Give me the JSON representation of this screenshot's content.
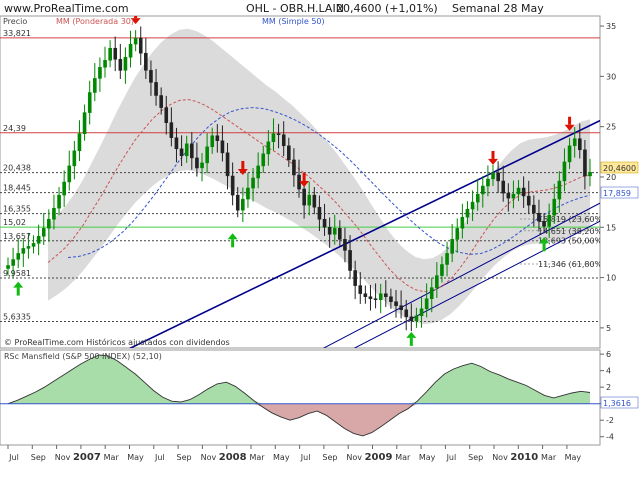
{
  "header": {
    "site": "www.ProRealTime.com",
    "instrument": "OHL - OBR.H.LAIN",
    "quote": "20,4600 (+1,01%)",
    "period": "Semanal  28 May"
  },
  "main_panel": {
    "price_label": "Precio",
    "ma_weighted_label": "MM (Ponderada 30)",
    "ma_simple_label": "MM (Simple 50)",
    "footnote": "© ProRealTime.com Históricos ajustados con dividendos",
    "current_price_tag": "20,4600",
    "secondary_price_tag": "17,859",
    "right_axis_ticks": [
      "35",
      "30",
      "25",
      "20",
      "15",
      "10",
      "5"
    ],
    "left_levels": [
      "33,821",
      "24,39",
      "20,438",
      "18,445",
      "16,355",
      "15,02",
      "13,657",
      "9,9581",
      "5,6335"
    ],
    "fib_labels": [
      "15,819 (23,60%)",
      "14,651 (38,20%)",
      "13,693 (50,00%)",
      "11,346 (61,80%)"
    ]
  },
  "indicator_panel": {
    "label": "RSc Mansfield (S&P 500 INDEX) (52,10)",
    "value_tag": "1,3616",
    "axis_ticks": [
      "6",
      "4",
      "2",
      "0",
      "-2",
      "-4"
    ]
  },
  "x_axis": {
    "labels": [
      "Jul",
      "Sep",
      "Nov",
      "2007",
      "Mar",
      "May",
      "Jul",
      "Sep",
      "Nov",
      "2008",
      "Mar",
      "May",
      "Jul",
      "Sep",
      "Nov",
      "2009",
      "Mar",
      "May",
      "Jul",
      "Sep",
      "Nov",
      "2010",
      "Mar",
      "May"
    ]
  },
  "colors": {
    "candle_up": "#008800",
    "candle_down": "#222222",
    "trendline": "#00008b",
    "ma_weighted": "#cc5555",
    "ma_simple": "#3355cc",
    "envelope": "#c8c8c8",
    "arrow_up": "#11bb11",
    "arrow_down": "#dd1100",
    "indicator_positive": "#a8dca8",
    "indicator_negative": "#d8a8a8"
  },
  "chart_data": {
    "type": "candlestick",
    "title": "OHL - OBR.H.LAIN",
    "ylim": [
      3,
      36
    ],
    "weekly_closes": [
      11.2,
      11.8,
      12.4,
      12.9,
      13.1,
      13.4,
      14.1,
      14.9,
      15.8,
      16.9,
      18.2,
      19.5,
      21.1,
      22.6,
      24.3,
      26.4,
      28.4,
      29.8,
      30.9,
      31.6,
      32.8,
      31.7,
      30.6,
      31.9,
      33.2,
      33.8,
      32.3,
      30.6,
      29.4,
      28.1,
      26.9,
      25.4,
      23.9,
      22.8,
      22.1,
      23.3,
      21.9,
      20.9,
      21.4,
      23.0,
      24.1,
      23.6,
      22.4,
      20.1,
      18.2,
      16.7,
      17.8,
      18.9,
      19.9,
      21.1,
      22.3,
      23.5,
      24.3,
      24.2,
      23.1,
      21.7,
      20.2,
      18.8,
      17.2,
      18.2,
      17.0,
      15.8,
      15.0,
      14.3,
      14.9,
      13.8,
      12.7,
      10.7,
      9.2,
      8.4,
      8.1,
      7.9,
      7.8,
      8.4,
      8.1,
      7.6,
      7.2,
      6.8,
      6.1,
      5.7,
      6.2,
      6.9,
      7.9,
      9.0,
      10.2,
      11.3,
      12.4,
      13.8,
      14.9,
      16.0,
      16.8,
      17.5,
      18.3,
      19.1,
      19.8,
      20.4,
      19.6,
      18.4,
      17.9,
      18.3,
      18.9,
      18.1,
      17.2,
      16.4,
      15.6,
      15.1,
      16.2,
      17.8,
      19.6,
      21.5,
      23.1,
      23.8,
      22.7,
      20.1,
      20.46
    ],
    "ma_weighted_30": [
      11.5,
      12.2,
      13.0,
      14.0,
      15.2,
      16.6,
      18.0,
      19.5,
      21.0,
      22.4,
      23.7,
      24.8,
      25.8,
      26.6,
      27.2,
      27.6,
      27.7,
      27.5,
      27.1,
      26.6,
      26.0,
      25.4,
      24.8,
      24.2,
      23.6,
      23.0,
      22.5,
      21.9,
      21.3,
      20.6,
      19.9,
      19.1,
      18.3,
      17.4,
      16.4,
      15.4,
      14.3,
      13.1,
      12.0,
      10.9,
      10.0,
      9.3,
      8.8,
      8.6,
      8.7,
      9.1,
      9.8,
      10.8,
      12.0,
      13.3,
      14.6,
      15.8,
      16.8,
      17.6,
      18.2,
      18.5,
      18.6,
      18.7,
      18.9,
      19.2,
      19.6,
      20.0,
      20.2
    ],
    "ma_simple_50": [
      12.0,
      12.1,
      12.4,
      12.9,
      13.6,
      14.5,
      15.6,
      16.9,
      18.3,
      19.8,
      21.3,
      22.7,
      24.0,
      25.1,
      25.9,
      26.5,
      26.8,
      26.9,
      26.8,
      26.5,
      26.1,
      25.6,
      25.0,
      24.3,
      23.5,
      22.6,
      21.6,
      20.5,
      19.4,
      18.3,
      17.2,
      16.2,
      15.2,
      14.3,
      13.5,
      12.9,
      12.5,
      12.3,
      12.4,
      12.8,
      13.4,
      14.1,
      14.9,
      15.7,
      16.4,
      17.0,
      17.5,
      17.9,
      18.2
    ],
    "rsc_mansfield": [
      0,
      0.4,
      0.9,
      1.4,
      2.0,
      2.7,
      3.4,
      4.1,
      4.8,
      5.4,
      5.9,
      5.8,
      5.2,
      4.4,
      3.6,
      2.6,
      1.6,
      0.8,
      0.3,
      0.2,
      0.5,
      1.1,
      1.8,
      2.4,
      2.6,
      2.1,
      1.3,
      0.4,
      -0.4,
      -1.1,
      -1.6,
      -2.0,
      -1.7,
      -1.2,
      -0.9,
      -1.4,
      -2.2,
      -3.0,
      -3.6,
      -3.9,
      -3.5,
      -2.8,
      -2.0,
      -1.2,
      -0.6,
      0.3,
      1.4,
      2.6,
      3.6,
      4.2,
      4.6,
      4.9,
      4.5,
      3.9,
      3.5,
      3.0,
      2.6,
      2.2,
      1.6,
      1.0,
      0.7,
      1.0,
      1.3,
      1.5,
      1.36
    ]
  }
}
